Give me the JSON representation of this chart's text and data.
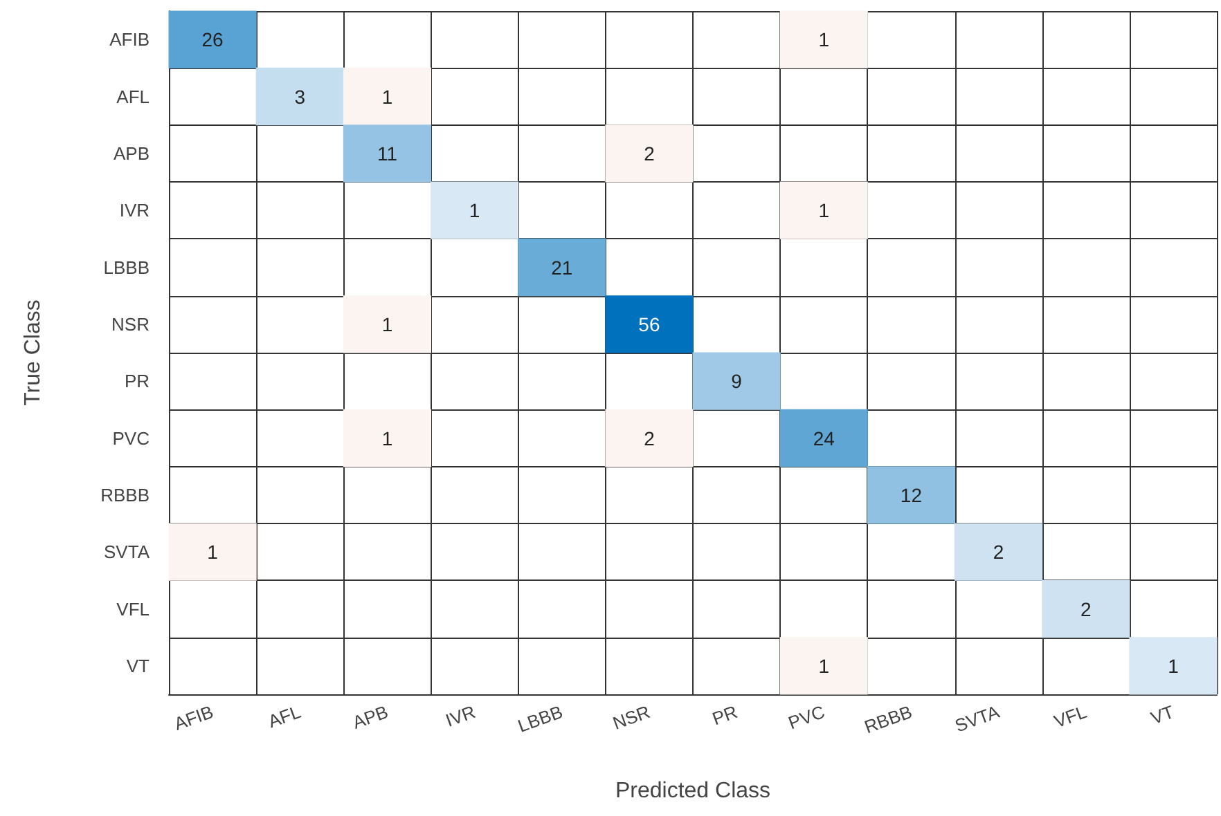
{
  "chart_data": {
    "type": "heatmap",
    "xlabel": "Predicted Class",
    "ylabel": "True Class",
    "categories": [
      "AFIB",
      "AFL",
      "APB",
      "IVR",
      "LBBB",
      "NSR",
      "PR",
      "PVC",
      "RBBB",
      "SVTA",
      "VFL",
      "VT"
    ],
    "y_categories": [
      "AFIB",
      "AFL",
      "APB",
      "IVR",
      "LBBB",
      "NSR",
      "PR",
      "PVC",
      "RBBB",
      "SVTA",
      "VFL",
      "VT"
    ],
    "cells": [
      [
        26,
        null,
        null,
        null,
        null,
        null,
        null,
        1,
        null,
        null,
        null,
        null
      ],
      [
        null,
        3,
        1,
        null,
        null,
        null,
        null,
        null,
        null,
        null,
        null,
        null
      ],
      [
        null,
        null,
        11,
        null,
        null,
        2,
        null,
        null,
        null,
        null,
        null,
        null
      ],
      [
        null,
        null,
        null,
        1,
        null,
        null,
        null,
        1,
        null,
        null,
        null,
        null
      ],
      [
        null,
        null,
        null,
        null,
        21,
        null,
        null,
        null,
        null,
        null,
        null,
        null
      ],
      [
        null,
        null,
        1,
        null,
        null,
        56,
        null,
        null,
        null,
        null,
        null,
        null
      ],
      [
        null,
        null,
        null,
        null,
        null,
        null,
        9,
        null,
        null,
        null,
        null,
        null
      ],
      [
        null,
        null,
        1,
        null,
        null,
        2,
        null,
        24,
        null,
        null,
        null,
        null
      ],
      [
        null,
        null,
        null,
        null,
        null,
        null,
        null,
        null,
        12,
        null,
        null,
        null
      ],
      [
        1,
        null,
        null,
        null,
        null,
        null,
        null,
        null,
        null,
        2,
        null,
        null
      ],
      [
        null,
        null,
        null,
        null,
        null,
        null,
        null,
        null,
        null,
        null,
        2,
        null
      ],
      [
        null,
        null,
        null,
        null,
        null,
        null,
        null,
        1,
        null,
        null,
        null,
        1
      ]
    ],
    "data_labels": true
  }
}
